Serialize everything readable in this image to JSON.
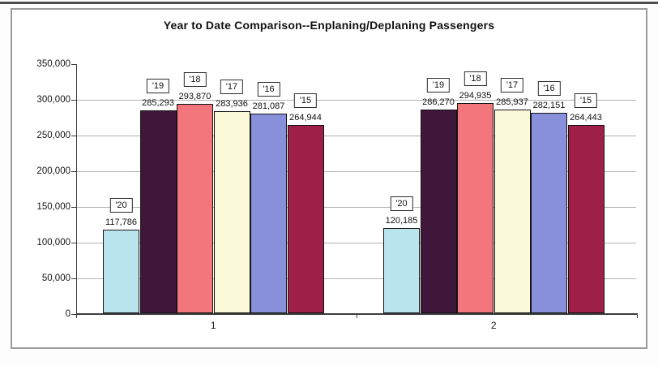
{
  "title": "Year to Date Comparison--Enplaning/Deplaning Passengers",
  "chart_data": {
    "type": "bar",
    "title": "Year to Date Comparison--Enplaning/Deplaning Passengers",
    "categories": [
      "1",
      "2"
    ],
    "series": [
      {
        "name": "'20",
        "color": "#b9e4ee",
        "values": [
          117786,
          120185
        ]
      },
      {
        "name": "'19",
        "color": "#40173a",
        "values": [
          285293,
          286270
        ]
      },
      {
        "name": "'18",
        "color": "#f4767d",
        "values": [
          293870,
          294935
        ]
      },
      {
        "name": "'17",
        "color": "#fafad8",
        "values": [
          283936,
          285937
        ]
      },
      {
        "name": "'16",
        "color": "#8890dc",
        "values": [
          281087,
          282151
        ]
      },
      {
        "name": "'15",
        "color": "#9e2048",
        "values": [
          264944,
          264443
        ]
      }
    ],
    "xlabel": "",
    "ylabel": "",
    "ylim": [
      0,
      350000
    ],
    "ytick_interval": 50000,
    "ytick_labels": [
      "0",
      "50,000",
      "100,000",
      "150,000",
      "200,000",
      "250,000",
      "300,000",
      "350,000"
    ],
    "grid": true,
    "legend_position": "none",
    "annotation_style": "each bar has its numeric value above it and its series year in a boxed label above the value"
  }
}
